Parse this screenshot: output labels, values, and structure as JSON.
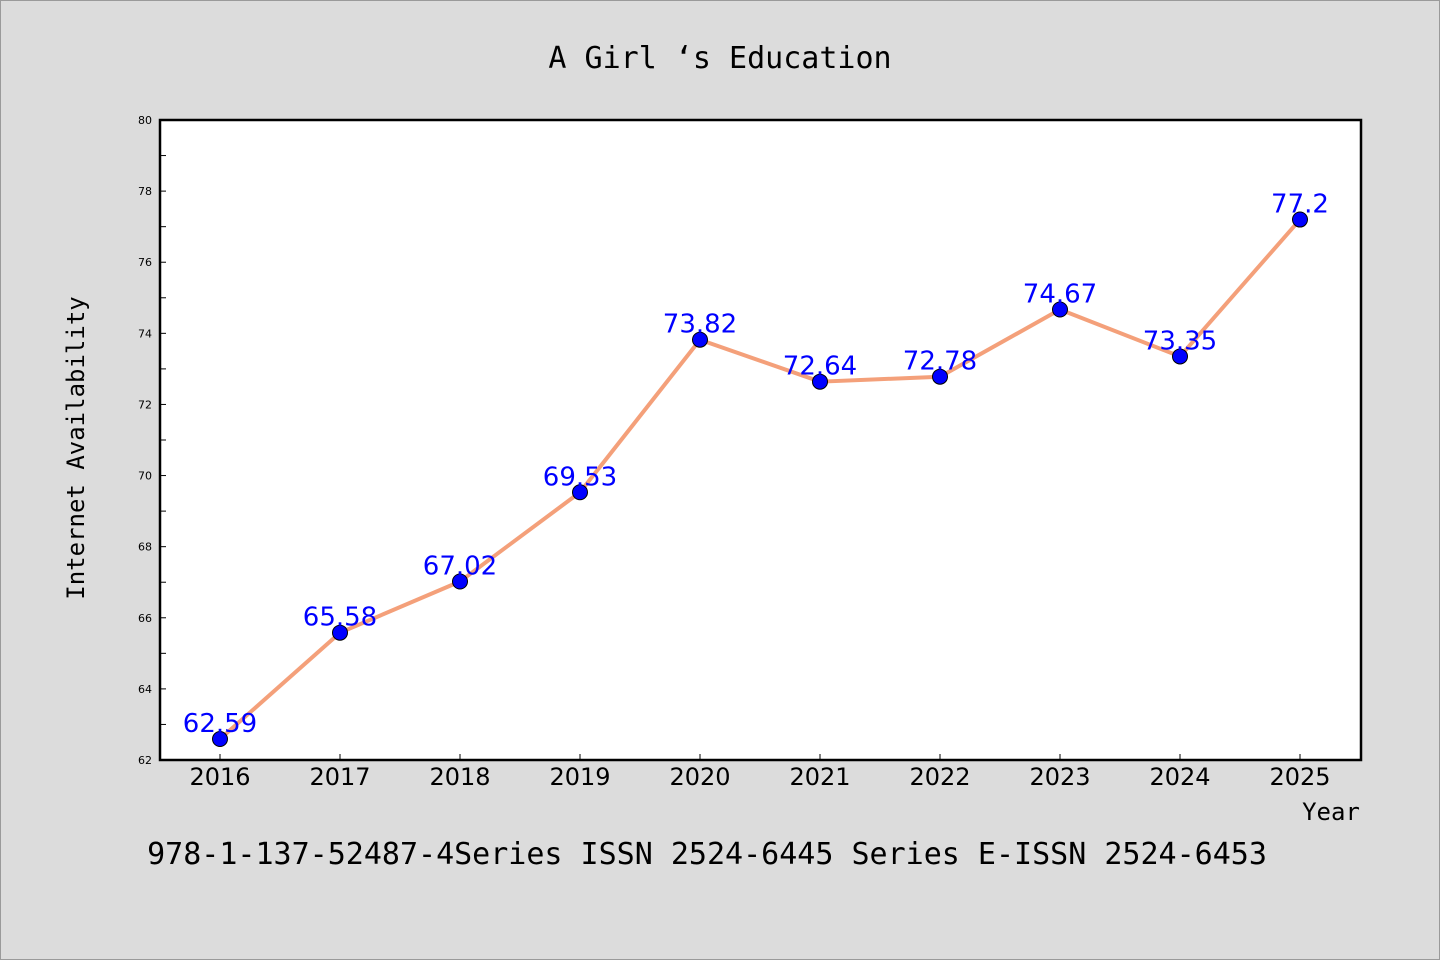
{
  "chart_data": {
    "type": "line",
    "title": "A Girl ‘s Education",
    "xlabel": "Year",
    "ylabel": "Internet Availability",
    "categories": [
      "2016",
      "2017",
      "2018",
      "2019",
      "2020",
      "2021",
      "2022",
      "2023",
      "2024",
      "2025"
    ],
    "series": [
      {
        "values": [
          62.59,
          65.58,
          67.02,
          69.53,
          73.82,
          72.64,
          72.78,
          74.67,
          73.35,
          77.2
        ],
        "labels": [
          "62.59",
          "65.58",
          "67.02",
          "69.53",
          "73.82",
          "72.64",
          "72.78",
          "74.67",
          "73.35",
          "77.2"
        ]
      }
    ],
    "ylim": [
      62,
      80
    ],
    "yticks": [
      "62",
      "64",
      "66",
      "68",
      "70",
      "72",
      "74",
      "76",
      "78",
      "80"
    ],
    "grid": false,
    "colors": {
      "line": "#f4a07a",
      "marker": "#0000ff",
      "label": "#0000ff",
      "axes": "#000000"
    }
  },
  "footer": {
    "text": "978-1-137-52487-4Series ISSN 2524-6445 Series E-ISSN 2524-6453"
  }
}
